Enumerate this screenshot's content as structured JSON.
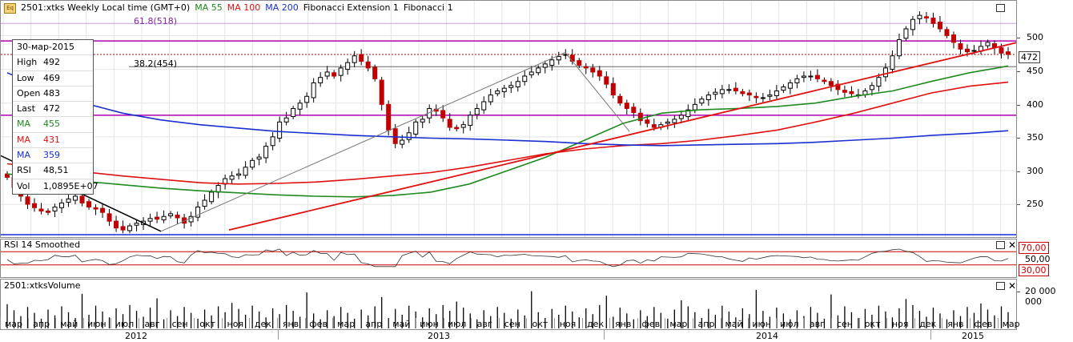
{
  "header": {
    "symbol_title": "2501:xtks Weekly Local time (GMT+0)",
    "ma1": "MA 55",
    "ma2": "MA 100",
    "ma3": "MA 200",
    "fib_ext": "Fibonacci Extension 1",
    "fib": "Fibonacci 1",
    "eq_icon": "Eq"
  },
  "fib_labels": {
    "upper": "61.8(518)",
    "lower": "38.2(454)"
  },
  "tooltip": {
    "date": "30-мар-2015",
    "rows": [
      {
        "label": "High",
        "value": "492"
      },
      {
        "label": "Low",
        "value": "469"
      },
      {
        "label": "Open",
        "value": "483"
      },
      {
        "label": "Last",
        "value": "472"
      },
      {
        "label": "MA",
        "value": "455"
      },
      {
        "label": "MA",
        "value": "431"
      },
      {
        "label": "MA",
        "value": "359"
      },
      {
        "label": "RSI",
        "value": "48,51"
      },
      {
        "label": "Vol",
        "value": "1,0895E+07"
      }
    ]
  },
  "price_axis": {
    "ticks": [
      "500",
      "450",
      "400",
      "350",
      "300",
      "250"
    ],
    "last_badge": "472"
  },
  "rsi_panel": {
    "title": "RSI 14 Smoothed",
    "levels": [
      "70,00",
      "50,00",
      "30,00"
    ]
  },
  "volume_panel": {
    "title": "2501:xtksVolume",
    "tick": "20 000 000"
  },
  "time_axis": {
    "months": [
      "мар",
      "апр",
      "май",
      "июн",
      "июл",
      "авг",
      "сен",
      "окт",
      "ноя",
      "дек",
      "янв",
      "фев",
      "мар",
      "апр",
      "май",
      "июн",
      "июл",
      "авг",
      "сен",
      "окт",
      "ноя",
      "дек",
      "янв",
      "фев",
      "мар",
      "апр",
      "май",
      "июн",
      "июл",
      "авг",
      "сен",
      "окт",
      "ноя",
      "дек",
      "янв",
      "фев",
      "мар"
    ],
    "years": [
      "2012",
      "2013",
      "2014",
      "2015"
    ]
  },
  "colors": {
    "ma55": "#1f8a1f",
    "ma100": "#e01010",
    "ma200": "#1a2fd0",
    "fib_line": "#b000b0",
    "trend": "#e01010",
    "support": "#000000"
  },
  "chart_data": {
    "type": "candlestick",
    "title": "2501:xtks Weekly",
    "ylim": [
      205,
      548
    ],
    "series": [
      {
        "name": "MA 55",
        "values": [
          295,
          290,
          284,
          279,
          274,
          270,
          267,
          264,
          262,
          261,
          263,
          268,
          280,
          300,
          320,
          345,
          370,
          385,
          390,
          392,
          395,
          400,
          410,
          418,
          432,
          445,
          455
        ]
      },
      {
        "name": "MA 100",
        "values": [
          310,
          305,
          298,
          292,
          287,
          282,
          280,
          281,
          283,
          287,
          292,
          297,
          305,
          315,
          325,
          332,
          337,
          340,
          345,
          352,
          360,
          372,
          385,
          400,
          415,
          425,
          431
        ]
      },
      {
        "name": "MA 200",
        "values": [
          445,
          420,
          400,
          385,
          375,
          368,
          363,
          358,
          355,
          352,
          350,
          348,
          347,
          345,
          343,
          340,
          338,
          337,
          338,
          339,
          340,
          342,
          345,
          348,
          352,
          355,
          359
        ]
      }
    ],
    "close": [
      290,
      275,
      262,
      250,
      245,
      240,
      238,
      246,
      252,
      258,
      262,
      252,
      246,
      243,
      238,
      225,
      215,
      212,
      218,
      222,
      225,
      229,
      228,
      232,
      236,
      230,
      222,
      232,
      246,
      256,
      268,
      278,
      288,
      292,
      295,
      305,
      315,
      320,
      336,
      350,
      372,
      378,
      392,
      400,
      410,
      430,
      438,
      446,
      440,
      452,
      460,
      470,
      462,
      452,
      436,
      398,
      360,
      340,
      345,
      356,
      372,
      376,
      392,
      388,
      378,
      364,
      362,
      368,
      382,
      392,
      402,
      412,
      418,
      422,
      426,
      432,
      440,
      446,
      452,
      458,
      464,
      469,
      472,
      462,
      456,
      452,
      446,
      440,
      428,
      412,
      400,
      392,
      386,
      374,
      370,
      364,
      368,
      372,
      376,
      382,
      390,
      398,
      406,
      412,
      416,
      420,
      420,
      418,
      414,
      412,
      408,
      408,
      412,
      418,
      424,
      430,
      436,
      440,
      440,
      436,
      432,
      426,
      420,
      416,
      414,
      412,
      418,
      426,
      438,
      452,
      470,
      494,
      510,
      524,
      530,
      526,
      518,
      510,
      500,
      490,
      480,
      476,
      478,
      484,
      490,
      482,
      474,
      472
    ],
    "volume_max": 25000000
  }
}
